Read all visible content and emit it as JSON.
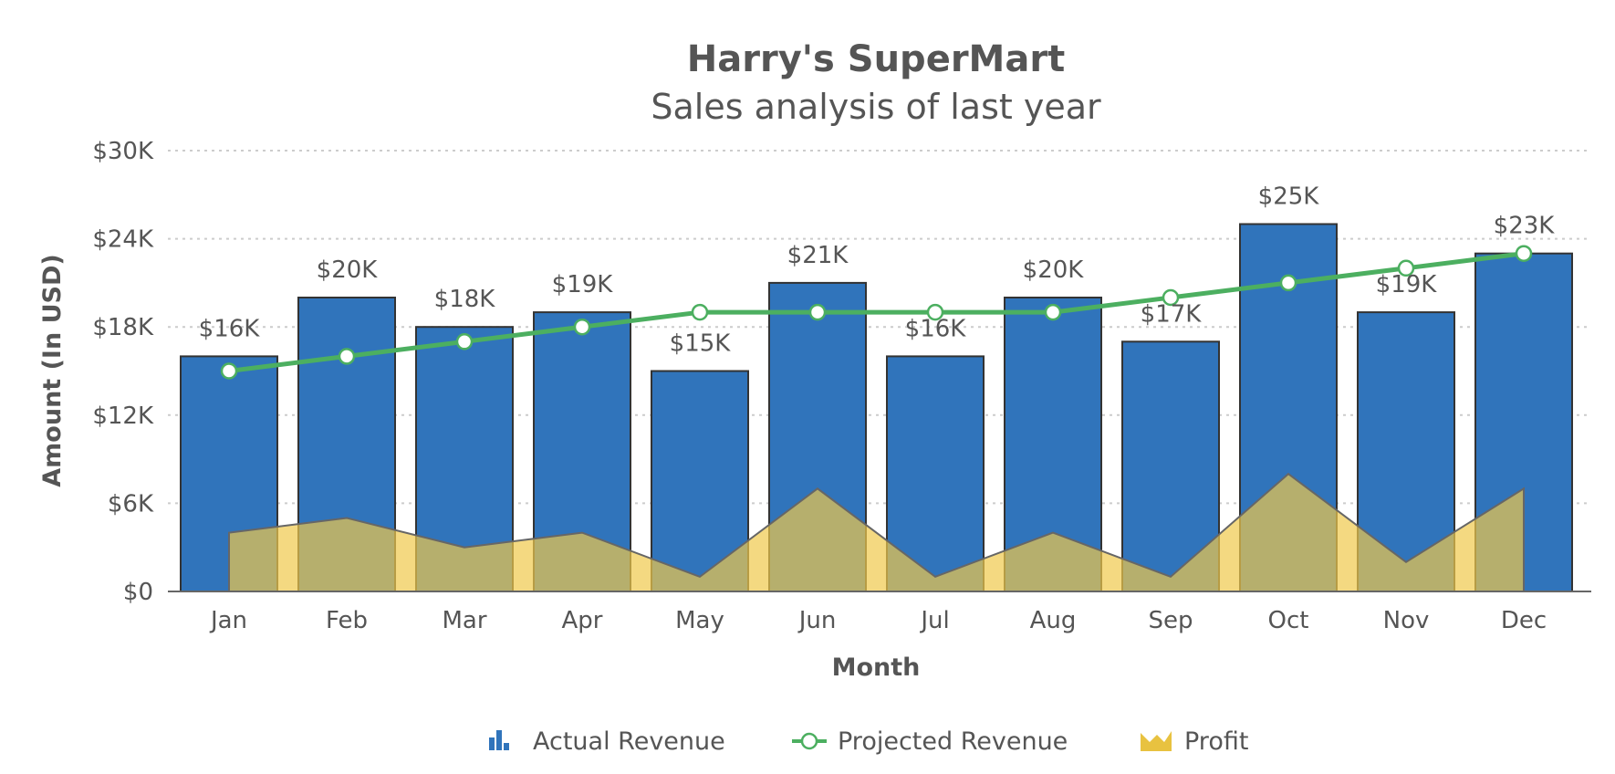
{
  "chart_data": {
    "type": "bar",
    "title": "Harry's SuperMart",
    "subtitle": "Sales analysis of last year",
    "xlabel": "Month",
    "ylabel": "Amount (In USD)",
    "ylim": [
      0,
      30000
    ],
    "yticks": [
      0,
      6000,
      12000,
      18000,
      24000,
      30000
    ],
    "ytick_labels": [
      "$0",
      "$6K",
      "$12K",
      "$18K",
      "$24K",
      "$30K"
    ],
    "grid": true,
    "legend_placement": "bottom",
    "categories": [
      "Jan",
      "Feb",
      "Mar",
      "Apr",
      "May",
      "Jun",
      "Jul",
      "Aug",
      "Sep",
      "Oct",
      "Nov",
      "Dec"
    ],
    "series": [
      {
        "name": "Actual Revenue",
        "type": "bar",
        "color": "#3074bb",
        "values": [
          16000,
          20000,
          18000,
          19000,
          15000,
          21000,
          16000,
          20000,
          17000,
          25000,
          19000,
          23000
        ],
        "labels": [
          "$16K",
          "$20K",
          "$18K",
          "$19K",
          "$15K",
          "$21K",
          "$16K",
          "$20K",
          "$17K",
          "$25K",
          "$19K",
          "$23K"
        ]
      },
      {
        "name": "Projected Revenue",
        "type": "line",
        "color": "#4caf60",
        "values": [
          15000,
          16000,
          17000,
          18000,
          19000,
          19000,
          19000,
          19000,
          20000,
          21000,
          22000,
          23000
        ]
      },
      {
        "name": "Profit",
        "type": "area",
        "color": "#efc94c",
        "values": [
          4000,
          5000,
          3000,
          4000,
          1000,
          7000,
          1000,
          4000,
          1000,
          8000,
          2000,
          7000
        ]
      }
    ]
  }
}
